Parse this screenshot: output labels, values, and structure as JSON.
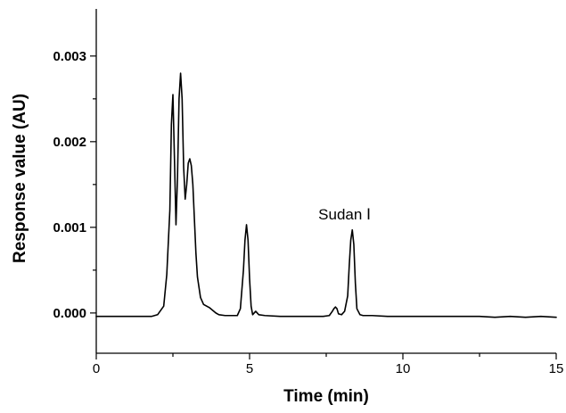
{
  "chart_data": {
    "type": "line",
    "title": "",
    "xlabel": "Time (min)",
    "ylabel": "Response value (AU)",
    "xlim": [
      0,
      15
    ],
    "ylim": [
      -0.00047,
      0.00355
    ],
    "x_ticks": [
      "0",
      "5",
      "10",
      "15"
    ],
    "y_ticks": [
      "0.000",
      "0.001",
      "0.002",
      "0.003"
    ],
    "grid": false,
    "legend": "none",
    "line_color": "#000000",
    "series": [
      {
        "name": "",
        "x": [
          0,
          0.5,
          1.0,
          1.5,
          1.8,
          2.0,
          2.2,
          2.3,
          2.4,
          2.45,
          2.5,
          2.55,
          2.6,
          2.65,
          2.7,
          2.75,
          2.8,
          2.85,
          2.9,
          2.95,
          3.0,
          3.05,
          3.1,
          3.15,
          3.2,
          3.25,
          3.3,
          3.4,
          3.5,
          3.6,
          3.7,
          3.8,
          3.9,
          4.0,
          4.2,
          4.4,
          4.6,
          4.7,
          4.8,
          4.85,
          4.9,
          4.95,
          5.0,
          5.05,
          5.1,
          5.2,
          5.3,
          5.5,
          6.0,
          6.5,
          7.0,
          7.4,
          7.6,
          7.7,
          7.75,
          7.8,
          7.85,
          7.9,
          8.0,
          8.1,
          8.2,
          8.25,
          8.3,
          8.35,
          8.4,
          8.45,
          8.5,
          8.6,
          8.7,
          9.0,
          9.5,
          10.0,
          10.5,
          11.0,
          11.5,
          12.0,
          12.5,
          13.0,
          13.5,
          14.0,
          14.5,
          15.0
        ],
        "values": [
          -4e-05,
          -4e-05,
          -4e-05,
          -4e-05,
          -4e-05,
          -2e-05,
          8e-05,
          0.00045,
          0.0012,
          0.0022,
          0.00255,
          0.0018,
          0.00103,
          0.0016,
          0.0025,
          0.0028,
          0.0025,
          0.0017,
          0.00133,
          0.0015,
          0.00175,
          0.0018,
          0.00172,
          0.0015,
          0.0011,
          0.0007,
          0.00042,
          0.00018,
          0.0001,
          8e-05,
          6e-05,
          3e-05,
          0.0,
          -2e-05,
          -3e-05,
          -3e-05,
          -3e-05,
          5e-05,
          0.0005,
          0.00085,
          0.00103,
          0.00085,
          0.0004,
          8e-05,
          -2e-05,
          2e-05,
          -2e-05,
          -3e-05,
          -4e-05,
          -4e-05,
          -4e-05,
          -4e-05,
          -3e-05,
          2e-05,
          5e-05,
          7e-05,
          5e-05,
          -1e-05,
          -2e-05,
          2e-05,
          0.0002,
          0.00055,
          0.00085,
          0.00097,
          0.0008,
          0.00035,
          5e-05,
          -2e-05,
          -3e-05,
          -3e-05,
          -4e-05,
          -4e-05,
          -4e-05,
          -4e-05,
          -4e-05,
          -4e-05,
          -4e-05,
          -5e-05,
          -4e-05,
          -5e-05,
          -4e-05,
          -5e-05
        ]
      }
    ],
    "annotations": [
      {
        "text": "Sudan Ⅰ",
        "x": 8.1,
        "y": 0.00109
      }
    ]
  }
}
